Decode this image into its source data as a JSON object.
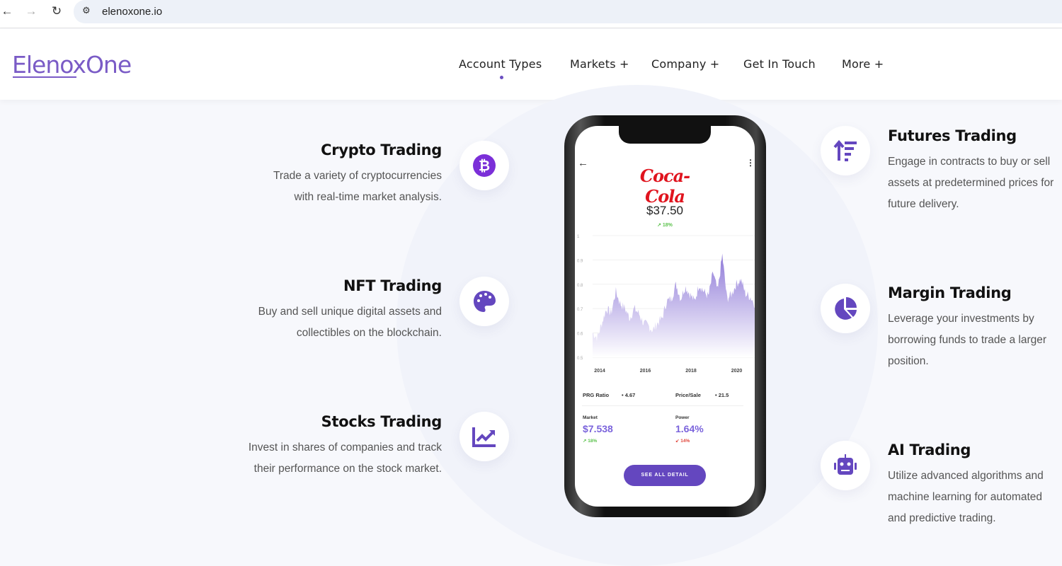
{
  "browser": {
    "url": "elenoxone.io",
    "back_icon": "arrow-left-icon",
    "forward_icon": "arrow-right-icon",
    "reload_icon": "reload-icon",
    "site_info_icon": "tune-icon"
  },
  "header": {
    "logo": "ElenoxOne",
    "nav": [
      {
        "label": "Account Types"
      },
      {
        "label": "Markets +"
      },
      {
        "label": "Company +"
      },
      {
        "label": "Get In Touch"
      },
      {
        "label": "More +"
      }
    ]
  },
  "features_left": [
    {
      "title": "Crypto Trading",
      "desc": "Trade a variety of cryptocurrencies with real-time market analysis.",
      "icon": "bitcoin-icon"
    },
    {
      "title": "NFT Trading",
      "desc": "Buy and sell unique digital assets and collectibles on the blockchain.",
      "icon": "palette-icon"
    },
    {
      "title": "Stocks Trading",
      "desc": "Invest in shares of companies and track their performance on the stock market.",
      "icon": "chart-line-icon"
    }
  ],
  "features_right": [
    {
      "title": "Futures Trading",
      "desc": "Engage in contracts to buy or sell assets at predetermined prices for future delivery.",
      "icon": "sort-amount-up-icon"
    },
    {
      "title": "Margin Trading",
      "desc": "Leverage your investments by borrowing funds to trade a larger position.",
      "icon": "pie-chart-icon"
    },
    {
      "title": "AI Trading",
      "desc": "Utilize advanced algorithms and machine learning for automated and predictive trading.",
      "icon": "robot-icon"
    }
  ],
  "phone": {
    "brand": "Coca-Cola",
    "price": "$37.50",
    "change": "↗ 18%",
    "y_ticks": [
      "1",
      "0.9",
      "0.8",
      "0.7",
      "0.6",
      "0.5"
    ],
    "x_ticks": [
      "2014",
      "2016",
      "2018",
      "2020"
    ],
    "prg_label": "PRG Ratio",
    "prg_value": "• 4.67",
    "ps_label": "Price/Sale",
    "ps_value": "• 21.5",
    "market_label": "Market",
    "market_value": "$7.538",
    "market_change": "↗ 18%",
    "power_label": "Power",
    "power_value": "1.64%",
    "power_change": "↙ 14%",
    "button": "SEE ALL DETAIL"
  },
  "colors": {
    "accent": "#6447bf",
    "up": "#5cc24d",
    "down": "#e0453a",
    "brand_red": "#e0141e"
  }
}
